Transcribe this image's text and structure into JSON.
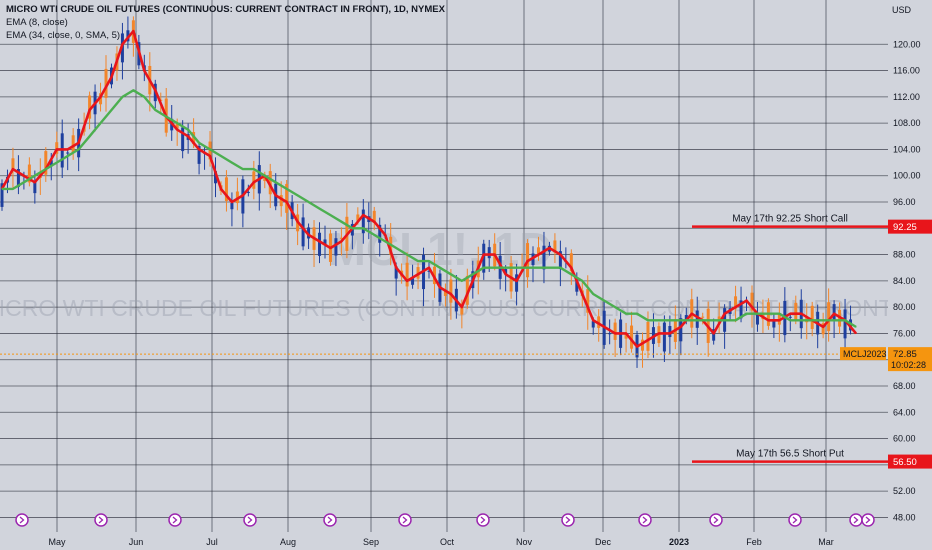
{
  "header": {
    "symbol_line": "MICRO WTI CRUDE OIL FUTURES (CONTINUOUS: CURRENT CONTRACT IN FRONT), 1D, NYMEX",
    "ema_short": "EMA (8, close)",
    "ema_long": "EMA (34, close, 0, SMA, 5)"
  },
  "watermark": {
    "ticker": "MCL1!, 1D",
    "name": "MICRO WTI CRUDE OIL FUTURES (CONTINUOUS: CURRENT CONTRACT IN FRONT)"
  },
  "colors": {
    "background": "#d1d4dc",
    "grid": "#2a2e39",
    "ema_short": "#e8151b",
    "ema_long": "#4caf50",
    "candle_up": "#1e3f9e",
    "candle_down": "#f2852a",
    "level_line": "#e8151b",
    "price_tag": "#f5950f"
  },
  "chart_data": {
    "type": "line",
    "title": "MICRO WTI CRUDE OIL FUTURES (CONTINUOUS: CURRENT CONTRACT IN FRONT), 1D, NYMEX",
    "currency": "USD",
    "xlabel": "",
    "ylabel": "",
    "ylim": [
      47,
      124
    ],
    "y_ticks": [
      48,
      52,
      56,
      60,
      64,
      68,
      72,
      76,
      80,
      84,
      88,
      92,
      96,
      100,
      104,
      108,
      112,
      116,
      120
    ],
    "x_ticks": [
      "May",
      "Jun",
      "Jul",
      "Aug",
      "Sep",
      "Oct",
      "Nov",
      "Dec",
      "2023",
      "Feb",
      "Mar"
    ],
    "grid": true,
    "series": [
      {
        "name": "EMA (8, close)",
        "color": "#e8151b",
        "values": [
          98,
          101,
          100,
          99,
          101,
          104,
          104,
          105,
          110,
          112,
          115,
          120,
          122,
          116,
          113,
          109,
          107,
          106,
          104,
          103,
          98,
          96,
          97,
          99,
          100,
          97,
          96,
          93,
          91,
          90,
          89,
          90,
          92,
          94,
          93,
          91,
          86,
          84,
          85,
          86,
          83,
          82,
          80,
          84,
          88,
          88,
          85,
          84,
          87,
          88,
          89,
          88,
          86,
          82,
          78,
          77,
          76,
          76,
          74,
          75,
          76,
          76,
          77,
          79,
          78,
          76,
          79,
          80,
          81,
          79,
          78,
          78,
          79,
          79,
          78,
          77,
          79,
          78,
          76
        ]
      },
      {
        "name": "EMA (34, close, 0, SMA, 5)",
        "color": "#4caf50",
        "values": [
          98,
          98,
          99,
          100,
          101,
          102,
          103,
          104,
          106,
          108,
          110,
          112,
          113,
          112,
          110,
          109,
          108,
          107,
          105,
          104,
          103,
          102,
          101,
          101,
          100,
          99,
          98,
          97,
          96,
          95,
          94,
          93,
          92,
          92,
          91,
          90,
          89,
          88,
          87,
          87,
          86,
          85,
          84,
          85,
          86,
          86,
          86,
          86,
          86,
          86,
          86,
          86,
          85,
          84,
          82,
          81,
          80,
          79,
          79,
          78,
          78,
          78,
          78,
          78,
          78,
          78,
          78,
          78,
          79,
          79,
          79,
          79,
          78,
          78,
          78,
          78,
          78,
          78,
          77
        ]
      }
    ],
    "annotations": [
      {
        "label": "May 17th 92.25 Short Call",
        "value": 92.25,
        "tag": "92.25"
      },
      {
        "label": "May 17th 56.5 Short Put",
        "value": 56.5,
        "tag": "56.50"
      }
    ],
    "last_price": {
      "value": 72.85,
      "symbol": "MCLJ2023",
      "price_text": "72.85",
      "countdown": "10:02:28"
    }
  }
}
